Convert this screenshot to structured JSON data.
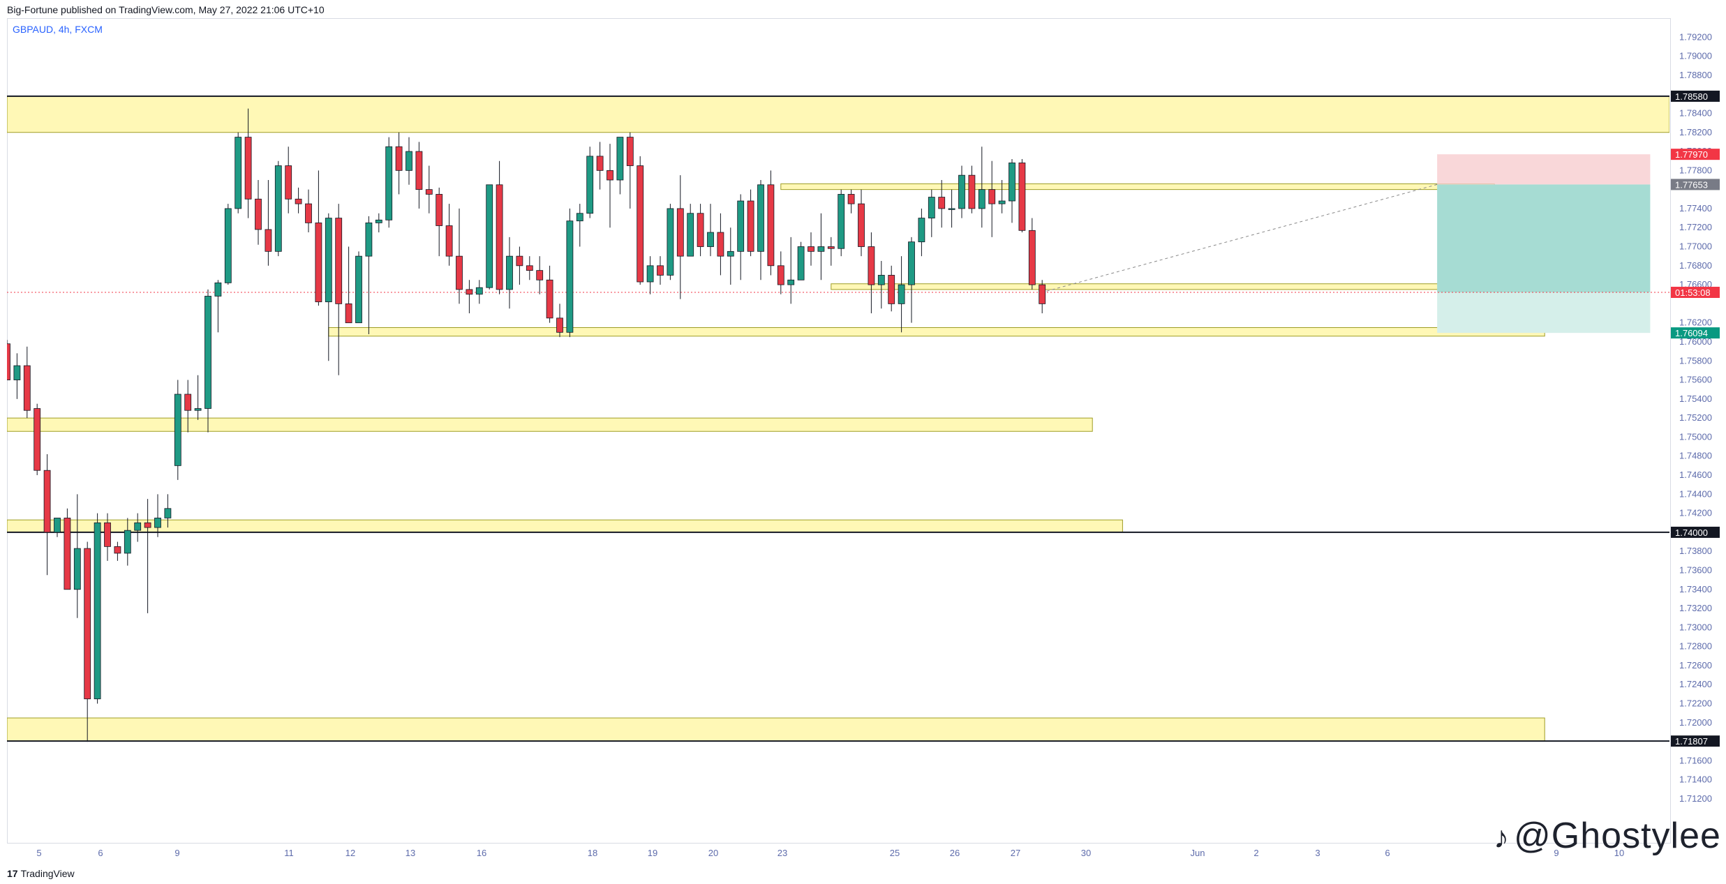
{
  "header": {
    "publisher_line": "Big-Fortune published on TradingView.com, May 27, 2022 21:06 UTC+10"
  },
  "symbol": {
    "label": "GBPAUD, 4h, FXCM"
  },
  "footer": {
    "brand_mark": "17",
    "brand_name": "TradingView"
  },
  "watermark": {
    "icon": "tiktok-icon",
    "text": "@Ghostylee"
  },
  "colors": {
    "bull": "#26a69a",
    "bull_body": "#1f9a84",
    "bear": "#ef5350",
    "bear_body": "#e63946",
    "zone_fill": "#fff59d",
    "zone_border": "#9e9d24",
    "stop_fill": "#f8cdd0",
    "target_fill": "#a6dcd3",
    "target_fill_light": "#d5efea",
    "label_dark": "#131722",
    "label_red": "#f23645",
    "label_gray": "#787b86",
    "label_green": "#089981",
    "tick_text": "#5d6bab"
  },
  "chart_data": {
    "type": "candlestick",
    "title": "GBPAUD, 4h, FXCM",
    "ylim": [
      1.71,
      1.794
    ],
    "y_ticks": [
      "1.79200",
      "1.79000",
      "1.78800",
      "1.78400",
      "1.78200",
      "1.78000",
      "1.77800",
      "1.77400",
      "1.77200",
      "1.77000",
      "1.76800",
      "1.76600",
      "1.76200",
      "1.76000",
      "1.75800",
      "1.75600",
      "1.75400",
      "1.75200",
      "1.75000",
      "1.74800",
      "1.74600",
      "1.74400",
      "1.74200",
      "1.73800",
      "1.73600",
      "1.73400",
      "1.73200",
      "1.73000",
      "1.72800",
      "1.72600",
      "1.72400",
      "1.72200",
      "1.72000",
      "1.71600",
      "1.71400",
      "1.71200"
    ],
    "x_ticks": [
      "5",
      "6",
      "9",
      "11",
      "12",
      "13",
      "16",
      "18",
      "19",
      "20",
      "23",
      "25",
      "26",
      "27",
      "30",
      "Jun",
      "2",
      "3",
      "6",
      "9",
      "10"
    ],
    "price_labels": [
      {
        "text": "1.78580",
        "value": 1.7858,
        "color": "label_dark"
      },
      {
        "text": "1.77970",
        "value": 1.7797,
        "color": "label_red"
      },
      {
        "text": "1.77653",
        "value": 1.77653,
        "color": "label_gray"
      },
      {
        "text": "01:53:08",
        "value": 1.7652,
        "color": "label_red"
      },
      {
        "text": "1.76094",
        "value": 1.76094,
        "color": "label_green"
      },
      {
        "text": "1.74000",
        "value": 1.74,
        "color": "label_dark"
      },
      {
        "text": "1.71807",
        "value": 1.71807,
        "color": "label_dark"
      }
    ],
    "horizontal_lines": [
      1.7858,
      1.74,
      1.71807
    ],
    "current_price": 1.7652,
    "zones": [
      {
        "y1": 1.7858,
        "y2": 1.782,
        "x1": -1,
        "x2": 999
      },
      {
        "y1": 1.7766,
        "y2": 1.776,
        "x1": 77,
        "x2": 148
      },
      {
        "y1": 1.7661,
        "y2": 1.7655,
        "x1": 82,
        "x2": 148
      },
      {
        "y1": 1.7615,
        "y2": 1.7606,
        "x1": 32,
        "x2": 153
      },
      {
        "y1": 1.752,
        "y2": 1.7506,
        "x1": -1,
        "x2": 108
      },
      {
        "y1": 1.7413,
        "y2": 1.74,
        "x1": -1,
        "x2": 111
      },
      {
        "y1": 1.7205,
        "y2": 1.71807,
        "x1": -1,
        "x2": 153
      }
    ],
    "position": {
      "type": "short",
      "entry": 1.77653,
      "stop": 1.7797,
      "target": 1.76094,
      "x1": 142.3,
      "x2": 163.5
    },
    "candles": [
      {
        "o": 1.7598,
        "h": 1.7602,
        "l": 1.756,
        "c": 1.756
      },
      {
        "o": 1.756,
        "h": 1.7588,
        "l": 1.754,
        "c": 1.7575
      },
      {
        "o": 1.7575,
        "h": 1.7595,
        "l": 1.752,
        "c": 1.7528
      },
      {
        "o": 1.753,
        "h": 1.7535,
        "l": 1.746,
        "c": 1.7465
      },
      {
        "o": 1.7465,
        "h": 1.7482,
        "l": 1.7355,
        "c": 1.74
      },
      {
        "o": 1.74,
        "h": 1.7415,
        "l": 1.7395,
        "c": 1.7415
      },
      {
        "o": 1.7415,
        "h": 1.7425,
        "l": 1.734,
        "c": 1.734
      },
      {
        "o": 1.734,
        "h": 1.744,
        "l": 1.731,
        "c": 1.7383
      },
      {
        "o": 1.7383,
        "h": 1.739,
        "l": 1.718,
        "c": 1.7225
      },
      {
        "o": 1.7225,
        "h": 1.742,
        "l": 1.722,
        "c": 1.741
      },
      {
        "o": 1.741,
        "h": 1.742,
        "l": 1.737,
        "c": 1.7385
      },
      {
        "o": 1.7385,
        "h": 1.739,
        "l": 1.737,
        "c": 1.7378
      },
      {
        "o": 1.7378,
        "h": 1.7415,
        "l": 1.7365,
        "c": 1.7402
      },
      {
        "o": 1.7402,
        "h": 1.742,
        "l": 1.739,
        "c": 1.741
      },
      {
        "o": 1.741,
        "h": 1.7435,
        "l": 1.7315,
        "c": 1.7405
      },
      {
        "o": 1.7405,
        "h": 1.744,
        "l": 1.7395,
        "c": 1.7415
      },
      {
        "o": 1.7415,
        "h": 1.744,
        "l": 1.7405,
        "c": 1.7425
      },
      {
        "o": 1.747,
        "h": 1.756,
        "l": 1.7455,
        "c": 1.7545
      },
      {
        "o": 1.7545,
        "h": 1.756,
        "l": 1.7505,
        "c": 1.7528
      },
      {
        "o": 1.7528,
        "h": 1.7565,
        "l": 1.7518,
        "c": 1.753
      },
      {
        "o": 1.753,
        "h": 1.7655,
        "l": 1.7505,
        "c": 1.7648
      },
      {
        "o": 1.7648,
        "h": 1.7665,
        "l": 1.761,
        "c": 1.7662
      },
      {
        "o": 1.7662,
        "h": 1.7745,
        "l": 1.766,
        "c": 1.774
      },
      {
        "o": 1.774,
        "h": 1.782,
        "l": 1.7735,
        "c": 1.7815
      },
      {
        "o": 1.7815,
        "h": 1.7845,
        "l": 1.773,
        "c": 1.775
      },
      {
        "o": 1.775,
        "h": 1.777,
        "l": 1.7702,
        "c": 1.7718
      },
      {
        "o": 1.7718,
        "h": 1.777,
        "l": 1.768,
        "c": 1.7695
      },
      {
        "o": 1.7695,
        "h": 1.779,
        "l": 1.769,
        "c": 1.7785
      },
      {
        "o": 1.7785,
        "h": 1.7805,
        "l": 1.7735,
        "c": 1.775
      },
      {
        "o": 1.775,
        "h": 1.7762,
        "l": 1.7735,
        "c": 1.7745
      },
      {
        "o": 1.7745,
        "h": 1.776,
        "l": 1.7715,
        "c": 1.7725
      },
      {
        "o": 1.7725,
        "h": 1.778,
        "l": 1.7638,
        "c": 1.7642
      },
      {
        "o": 1.7642,
        "h": 1.7735,
        "l": 1.758,
        "c": 1.773
      },
      {
        "o": 1.773,
        "h": 1.7745,
        "l": 1.7565,
        "c": 1.764
      },
      {
        "o": 1.764,
        "h": 1.77,
        "l": 1.7625,
        "c": 1.762
      },
      {
        "o": 1.762,
        "h": 1.7695,
        "l": 1.762,
        "c": 1.769
      },
      {
        "o": 1.769,
        "h": 1.7732,
        "l": 1.7608,
        "c": 1.7725
      },
      {
        "o": 1.7725,
        "h": 1.7735,
        "l": 1.7715,
        "c": 1.7728
      },
      {
        "o": 1.7728,
        "h": 1.7815,
        "l": 1.772,
        "c": 1.7805
      },
      {
        "o": 1.7805,
        "h": 1.782,
        "l": 1.7755,
        "c": 1.778
      },
      {
        "o": 1.778,
        "h": 1.7815,
        "l": 1.7765,
        "c": 1.78
      },
      {
        "o": 1.78,
        "h": 1.781,
        "l": 1.774,
        "c": 1.776
      },
      {
        "o": 1.776,
        "h": 1.7785,
        "l": 1.7735,
        "c": 1.7755
      },
      {
        "o": 1.7755,
        "h": 1.7762,
        "l": 1.769,
        "c": 1.7722
      },
      {
        "o": 1.7722,
        "h": 1.7745,
        "l": 1.768,
        "c": 1.769
      },
      {
        "o": 1.769,
        "h": 1.774,
        "l": 1.764,
        "c": 1.7655
      },
      {
        "o": 1.7655,
        "h": 1.7665,
        "l": 1.763,
        "c": 1.765
      },
      {
        "o": 1.765,
        "h": 1.7665,
        "l": 1.764,
        "c": 1.7657
      },
      {
        "o": 1.7657,
        "h": 1.7765,
        "l": 1.7655,
        "c": 1.7765
      },
      {
        "o": 1.7765,
        "h": 1.779,
        "l": 1.765,
        "c": 1.7655
      },
      {
        "o": 1.7655,
        "h": 1.771,
        "l": 1.7635,
        "c": 1.769
      },
      {
        "o": 1.769,
        "h": 1.77,
        "l": 1.766,
        "c": 1.768
      },
      {
        "o": 1.768,
        "h": 1.769,
        "l": 1.7665,
        "c": 1.7675
      },
      {
        "o": 1.7675,
        "h": 1.769,
        "l": 1.765,
        "c": 1.7665
      },
      {
        "o": 1.7665,
        "h": 1.768,
        "l": 1.762,
        "c": 1.7625
      },
      {
        "o": 1.7625,
        "h": 1.764,
        "l": 1.7605,
        "c": 1.761
      },
      {
        "o": 1.761,
        "h": 1.774,
        "l": 1.7605,
        "c": 1.7727
      },
      {
        "o": 1.7727,
        "h": 1.7745,
        "l": 1.77,
        "c": 1.7735
      },
      {
        "o": 1.7735,
        "h": 1.7805,
        "l": 1.773,
        "c": 1.7795
      },
      {
        "o": 1.7795,
        "h": 1.781,
        "l": 1.776,
        "c": 1.778
      },
      {
        "o": 1.778,
        "h": 1.7808,
        "l": 1.772,
        "c": 1.777
      },
      {
        "o": 1.777,
        "h": 1.7815,
        "l": 1.7755,
        "c": 1.7815
      },
      {
        "o": 1.7815,
        "h": 1.782,
        "l": 1.774,
        "c": 1.7785
      },
      {
        "o": 1.7785,
        "h": 1.7795,
        "l": 1.766,
        "c": 1.7663
      },
      {
        "o": 1.7663,
        "h": 1.769,
        "l": 1.765,
        "c": 1.768
      },
      {
        "o": 1.768,
        "h": 1.769,
        "l": 1.766,
        "c": 1.767
      },
      {
        "o": 1.767,
        "h": 1.7745,
        "l": 1.7665,
        "c": 1.774
      },
      {
        "o": 1.774,
        "h": 1.7775,
        "l": 1.7645,
        "c": 1.769
      },
      {
        "o": 1.769,
        "h": 1.7745,
        "l": 1.769,
        "c": 1.7735
      },
      {
        "o": 1.7735,
        "h": 1.7745,
        "l": 1.769,
        "c": 1.77
      },
      {
        "o": 1.77,
        "h": 1.7745,
        "l": 1.769,
        "c": 1.7715
      },
      {
        "o": 1.7715,
        "h": 1.7735,
        "l": 1.767,
        "c": 1.769
      },
      {
        "o": 1.769,
        "h": 1.772,
        "l": 1.766,
        "c": 1.7695
      },
      {
        "o": 1.7695,
        "h": 1.7755,
        "l": 1.7665,
        "c": 1.7748
      },
      {
        "o": 1.7748,
        "h": 1.776,
        "l": 1.769,
        "c": 1.7695
      },
      {
        "o": 1.7695,
        "h": 1.777,
        "l": 1.7665,
        "c": 1.7765
      },
      {
        "o": 1.7765,
        "h": 1.778,
        "l": 1.767,
        "c": 1.768
      },
      {
        "o": 1.768,
        "h": 1.7695,
        "l": 1.765,
        "c": 1.766
      },
      {
        "o": 1.766,
        "h": 1.771,
        "l": 1.764,
        "c": 1.7665
      },
      {
        "o": 1.7665,
        "h": 1.7705,
        "l": 1.7665,
        "c": 1.77
      },
      {
        "o": 1.77,
        "h": 1.7715,
        "l": 1.768,
        "c": 1.7695
      },
      {
        "o": 1.7695,
        "h": 1.7735,
        "l": 1.7665,
        "c": 1.77
      },
      {
        "o": 1.77,
        "h": 1.771,
        "l": 1.768,
        "c": 1.7698
      },
      {
        "o": 1.7698,
        "h": 1.776,
        "l": 1.769,
        "c": 1.7755
      },
      {
        "o": 1.7755,
        "h": 1.776,
        "l": 1.7735,
        "c": 1.7745
      },
      {
        "o": 1.7745,
        "h": 1.776,
        "l": 1.769,
        "c": 1.77
      },
      {
        "o": 1.77,
        "h": 1.7715,
        "l": 1.763,
        "c": 1.766
      },
      {
        "o": 1.766,
        "h": 1.7685,
        "l": 1.7635,
        "c": 1.767
      },
      {
        "o": 1.767,
        "h": 1.768,
        "l": 1.7632,
        "c": 1.764
      },
      {
        "o": 1.764,
        "h": 1.769,
        "l": 1.761,
        "c": 1.766
      },
      {
        "o": 1.766,
        "h": 1.771,
        "l": 1.762,
        "c": 1.7705
      },
      {
        "o": 1.7705,
        "h": 1.774,
        "l": 1.769,
        "c": 1.773
      },
      {
        "o": 1.773,
        "h": 1.776,
        "l": 1.771,
        "c": 1.7752
      },
      {
        "o": 1.7752,
        "h": 1.777,
        "l": 1.772,
        "c": 1.774
      },
      {
        "o": 1.774,
        "h": 1.776,
        "l": 1.772,
        "c": 1.774
      },
      {
        "o": 1.774,
        "h": 1.7785,
        "l": 1.773,
        "c": 1.7775
      },
      {
        "o": 1.7775,
        "h": 1.7785,
        "l": 1.7735,
        "c": 1.774
      },
      {
        "o": 1.774,
        "h": 1.7805,
        "l": 1.772,
        "c": 1.776
      },
      {
        "o": 1.776,
        "h": 1.779,
        "l": 1.771,
        "c": 1.7745
      },
      {
        "o": 1.7745,
        "h": 1.777,
        "l": 1.7735,
        "c": 1.7748
      },
      {
        "o": 1.7748,
        "h": 1.7792,
        "l": 1.7725,
        "c": 1.7788
      },
      {
        "o": 1.7788,
        "h": 1.7792,
        "l": 1.7715,
        "c": 1.7717
      },
      {
        "o": 1.7717,
        "h": 1.773,
        "l": 1.7655,
        "c": 1.766
      },
      {
        "o": 1.766,
        "h": 1.7665,
        "l": 1.763,
        "c": 1.764
      }
    ]
  }
}
